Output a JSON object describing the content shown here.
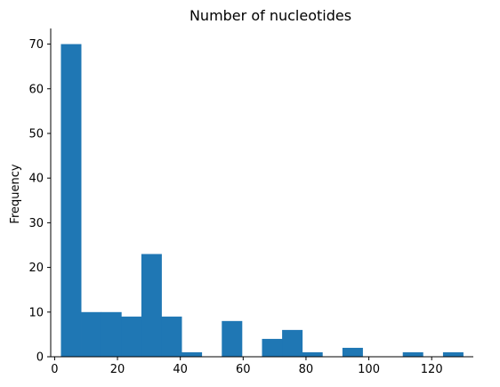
{
  "chart_data": {
    "type": "bar",
    "histogram": true,
    "title": "Number of nucleotides",
    "xlabel": "",
    "ylabel": "Frequency",
    "xlim": [
      -1.25,
      133.25
    ],
    "ylim": [
      0,
      73.5
    ],
    "xticks": [
      0,
      20,
      40,
      60,
      80,
      100,
      120
    ],
    "yticks": [
      0,
      10,
      20,
      30,
      40,
      50,
      60,
      70
    ],
    "bar_color": "#1f77b4",
    "bins": [
      {
        "x0": 2.0,
        "x1": 8.4,
        "count": 70
      },
      {
        "x0": 8.4,
        "x1": 14.8,
        "count": 10
      },
      {
        "x0": 14.8,
        "x1": 21.2,
        "count": 10
      },
      {
        "x0": 21.2,
        "x1": 27.6,
        "count": 9
      },
      {
        "x0": 27.6,
        "x1": 34.0,
        "count": 23
      },
      {
        "x0": 34.0,
        "x1": 40.4,
        "count": 9
      },
      {
        "x0": 40.4,
        "x1": 46.8,
        "count": 1
      },
      {
        "x0": 46.8,
        "x1": 53.2,
        "count": 0
      },
      {
        "x0": 53.2,
        "x1": 59.6,
        "count": 8
      },
      {
        "x0": 59.6,
        "x1": 66.0,
        "count": 0
      },
      {
        "x0": 66.0,
        "x1": 72.4,
        "count": 4
      },
      {
        "x0": 72.4,
        "x1": 78.8,
        "count": 6
      },
      {
        "x0": 78.8,
        "x1": 85.2,
        "count": 1
      },
      {
        "x0": 85.2,
        "x1": 91.6,
        "count": 0
      },
      {
        "x0": 91.6,
        "x1": 98.0,
        "count": 2
      },
      {
        "x0": 98.0,
        "x1": 104.4,
        "count": 0
      },
      {
        "x0": 104.4,
        "x1": 110.8,
        "count": 0
      },
      {
        "x0": 110.8,
        "x1": 117.2,
        "count": 1
      },
      {
        "x0": 117.2,
        "x1": 123.6,
        "count": 0
      },
      {
        "x0": 123.6,
        "x1": 130.0,
        "count": 1
      }
    ]
  }
}
